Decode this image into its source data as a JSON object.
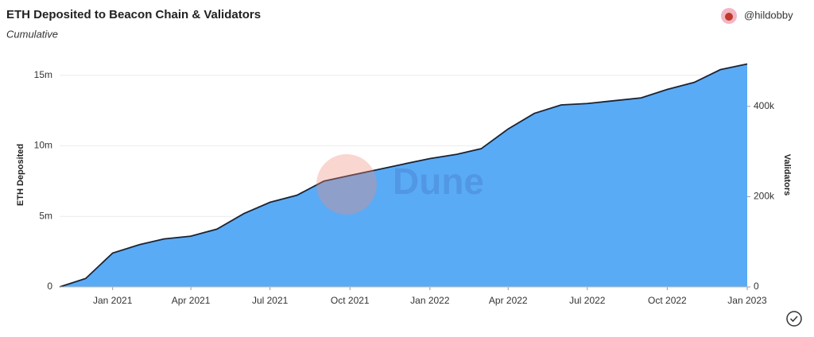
{
  "chart_data": {
    "type": "area",
    "title": "ETH Deposited to Beacon Chain & Validators",
    "subtitle": "Cumulative",
    "author": "@hildobby",
    "watermark": "Dune",
    "ylabel": "ETH Deposited",
    "y2label": "Validators",
    "x": [
      "2020-11",
      "2020-12",
      "2021-01",
      "2021-02",
      "2021-03",
      "2021-04",
      "2021-05",
      "2021-06",
      "2021-07",
      "2021-08",
      "2021-09",
      "2021-10",
      "2021-11",
      "2021-12",
      "2022-01",
      "2022-02",
      "2022-03",
      "2022-04",
      "2022-05",
      "2022-06",
      "2022-07",
      "2022-08",
      "2022-09",
      "2022-10",
      "2022-11",
      "2022-12",
      "2023-01"
    ],
    "series": [
      {
        "name": "ETH Deposited",
        "color": "#5aabf5",
        "values": [
          0,
          600000,
          2400000,
          3000000,
          3400000,
          3600000,
          4100000,
          5200000,
          6000000,
          6500000,
          7500000,
          7900000,
          8300000,
          8700000,
          9100000,
          9400000,
          9800000,
          11200000,
          12300000,
          12900000,
          13000000,
          13200000,
          13400000,
          14000000,
          14500000,
          15400000,
          15800000
        ]
      },
      {
        "name": "Validators",
        "color": "#1c2333",
        "axis": "y2",
        "values": [
          0,
          18750,
          75000,
          93750,
          106250,
          112500,
          128125,
          162500,
          187500,
          203125,
          234375,
          246875,
          259375,
          271875,
          284375,
          293750,
          306250,
          350000,
          384375,
          403125,
          406250,
          412500,
          418750,
          437500,
          453125,
          481250,
          493750
        ]
      }
    ],
    "xlim": [
      "2020-11",
      "2023-01"
    ],
    "xticks": [
      {
        "value": "2021-01",
        "label": "Jan 2021"
      },
      {
        "value": "2021-04",
        "label": "Apr 2021"
      },
      {
        "value": "2021-07",
        "label": "Jul 2021"
      },
      {
        "value": "2021-10",
        "label": "Oct 2021"
      },
      {
        "value": "2022-01",
        "label": "Jan 2022"
      },
      {
        "value": "2022-04",
        "label": "Apr 2022"
      },
      {
        "value": "2022-07",
        "label": "Jul 2022"
      },
      {
        "value": "2022-10",
        "label": "Oct 2022"
      },
      {
        "value": "2023-01",
        "label": "Jan 2023"
      }
    ],
    "ylim": [
      0,
      16000000
    ],
    "yticks": [
      0,
      {
        "value": 5000000,
        "label": "5m"
      },
      {
        "value": 10000000,
        "label": "10m"
      },
      {
        "value": 15000000,
        "label": "15m"
      }
    ],
    "y2lim": [
      0,
      500000
    ],
    "y2ticks": [
      0,
      {
        "value": 200000,
        "label": "200k"
      },
      {
        "value": 400000,
        "label": "400k"
      }
    ],
    "grid": true
  }
}
